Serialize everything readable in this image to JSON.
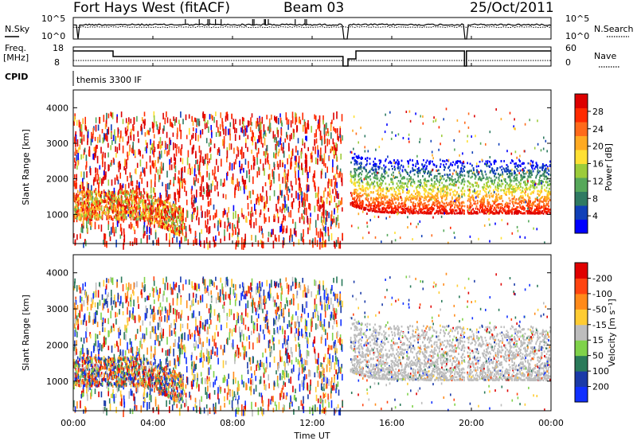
{
  "header": {
    "title": "Fort Hays West (fitACF)",
    "beam": "Beam 03",
    "date": "25/Oct/2011"
  },
  "param_panels": {
    "nsky_label": "N.Sky",
    "nsearch_label": "N.Search",
    "noise_ticks_left": [
      "10^5",
      "10^0"
    ],
    "noise_ticks_right": [
      "10^5",
      "10^0"
    ],
    "freq_label_line1": "Freq.",
    "freq_label_line2": "[MHz]",
    "freq_ticks": [
      "18",
      "8"
    ],
    "nave_label": "Nave",
    "nave_ticks": [
      "60",
      "0"
    ],
    "cpid_label": "CPID",
    "cpid_text": "themis 3300 IF"
  },
  "chart_data": [
    {
      "type": "heatmap",
      "name": "power",
      "ylabel": "Slant Range [km]",
      "xlabel": "",
      "yticks": [
        1000,
        2000,
        3000,
        4000
      ],
      "ylim": [
        180,
        4500
      ],
      "xlim_hours": [
        0,
        24
      ],
      "colorbar": {
        "label": "Power [dB]",
        "ticks": [
          "4",
          "8",
          "12",
          "16",
          "20",
          "24",
          "28"
        ],
        "colors": [
          "#0000ff",
          "#1040b8",
          "#2f7a62",
          "#56a85a",
          "#9ccc3a",
          "#ffe033",
          "#ffaa22",
          "#ff6a1a",
          "#ff2a00",
          "#dd0000"
        ]
      },
      "features": {
        "data_gap_hours": [
          13.55,
          13.8
        ],
        "gap_line_hour": 19.7,
        "main_echo_band_km": [
          1050,
          1500
        ],
        "upper_echo_band_km": [
          1500,
          2600
        ]
      }
    },
    {
      "type": "heatmap",
      "name": "velocity",
      "ylabel": "Slant Range [km]",
      "xlabel": "Time UT",
      "yticks": [
        1000,
        2000,
        3000,
        4000
      ],
      "ylim": [
        180,
        4500
      ],
      "xlim_hours": [
        0,
        24
      ],
      "xticks": [
        "00:00",
        "04:00",
        "08:00",
        "12:00",
        "16:00",
        "20:00",
        "00:00"
      ],
      "colorbar": {
        "label": "Velocity [m s⁻¹]",
        "ticks": [
          "200",
          "100",
          "50",
          "15",
          "-15",
          "-50",
          "-100",
          "-200"
        ],
        "colors": [
          "#1030ff",
          "#1a3aa8",
          "#2a7a5a",
          "#7fd24a",
          "#bdbdbd",
          "#ffcc33",
          "#ff8a1a",
          "#ff4410",
          "#e00000"
        ]
      },
      "features": {
        "ground_scatter_color": "#bdbdbd",
        "ground_scatter_band_km": [
          1050,
          2400
        ]
      }
    }
  ]
}
